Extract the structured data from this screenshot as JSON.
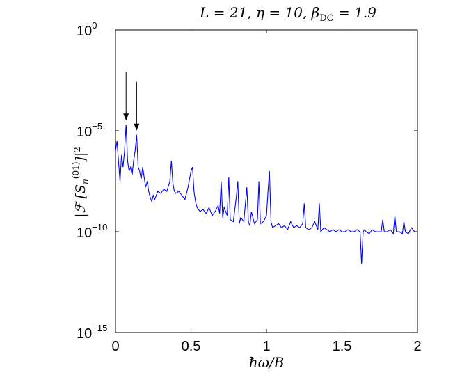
{
  "chart_data": {
    "type": "line",
    "title": "L = 21, η = 10, β_DC = 1.9",
    "xlabel": "ℏω/B",
    "ylabel": "|ℱ [S_π^(01)]|²",
    "xlim": [
      0,
      2
    ],
    "ylim_exponent": [
      -15,
      0
    ],
    "y_scale": "log",
    "x_ticks": [
      "0",
      "0.5",
      "1",
      "1.5",
      "2"
    ],
    "y_ticks": [
      {
        "base": "10",
        "exp": "0"
      },
      {
        "base": "10",
        "exp": "−5"
      },
      {
        "base": "10",
        "exp": "−10"
      },
      {
        "base": "10",
        "exp": "−15"
      }
    ],
    "series_color": "#0000ff",
    "annotations": [
      {
        "type": "arrow-down",
        "x": 0.07,
        "y_exponent": -4.7
      },
      {
        "type": "arrow-down",
        "x": 0.14,
        "y_exponent": -5.2
      }
    ],
    "series": [
      {
        "x": [
          0.0,
          0.01,
          0.02,
          0.03,
          0.04,
          0.05,
          0.06,
          0.07,
          0.08,
          0.09,
          0.1,
          0.11,
          0.12,
          0.13,
          0.14,
          0.15,
          0.16,
          0.17,
          0.18,
          0.19,
          0.2,
          0.21,
          0.22,
          0.23,
          0.24,
          0.25,
          0.26,
          0.28,
          0.3,
          0.32,
          0.34,
          0.36,
          0.37,
          0.38,
          0.39,
          0.4,
          0.42,
          0.44,
          0.46,
          0.48,
          0.5,
          0.51,
          0.52,
          0.53,
          0.54,
          0.56,
          0.58,
          0.6,
          0.62,
          0.64,
          0.66,
          0.68,
          0.69,
          0.7,
          0.71,
          0.72,
          0.73,
          0.74,
          0.75,
          0.76,
          0.78,
          0.8,
          0.81,
          0.82,
          0.83,
          0.85,
          0.87,
          0.88,
          0.89,
          0.9,
          0.92,
          0.94,
          0.95,
          0.96,
          0.98,
          1.0,
          1.01,
          1.02,
          1.03,
          1.04,
          1.06,
          1.08,
          1.1,
          1.12,
          1.14,
          1.16,
          1.18,
          1.2,
          1.22,
          1.24,
          1.25,
          1.26,
          1.28,
          1.3,
          1.32,
          1.34,
          1.35,
          1.36,
          1.38,
          1.4,
          1.42,
          1.44,
          1.46,
          1.48,
          1.5,
          1.52,
          1.54,
          1.56,
          1.58,
          1.6,
          1.62,
          1.63,
          1.64,
          1.65,
          1.66,
          1.68,
          1.7,
          1.72,
          1.74,
          1.76,
          1.77,
          1.78,
          1.8,
          1.82,
          1.84,
          1.85,
          1.86,
          1.88,
          1.9,
          1.91,
          1.92,
          1.94,
          1.96,
          1.98,
          2.0
        ],
        "y_exponent": [
          -6.0,
          -5.5,
          -6.5,
          -7.5,
          -6.2,
          -6.8,
          -6.0,
          -4.7,
          -6.5,
          -7.0,
          -6.8,
          -7.2,
          -6.5,
          -6.0,
          -5.2,
          -6.8,
          -7.0,
          -7.4,
          -6.8,
          -7.3,
          -7.8,
          -7.5,
          -8.0,
          -8.3,
          -8.5,
          -8.2,
          -8.4,
          -8.0,
          -8.1,
          -7.9,
          -8.0,
          -7.5,
          -6.5,
          -7.6,
          -8.0,
          -8.1,
          -8.0,
          -8.2,
          -8.4,
          -7.8,
          -7.0,
          -6.8,
          -8.0,
          -8.5,
          -8.8,
          -9.0,
          -8.9,
          -9.1,
          -8.8,
          -9.2,
          -9.0,
          -8.7,
          -9.1,
          -7.5,
          -9.3,
          -8.8,
          -9.0,
          -9.2,
          -7.3,
          -9.4,
          -9.5,
          -8.3,
          -7.5,
          -9.6,
          -9.3,
          -9.5,
          -7.8,
          -9.5,
          -9.7,
          -9.0,
          -9.6,
          -9.4,
          -7.5,
          -9.6,
          -9.5,
          -9.2,
          -8.0,
          -7.0,
          -9.5,
          -9.8,
          -9.7,
          -9.6,
          -9.8,
          -9.7,
          -9.9,
          -9.5,
          -9.8,
          -9.7,
          -9.8,
          -9.6,
          -8.6,
          -9.8,
          -9.9,
          -9.8,
          -9.5,
          -9.9,
          -8.6,
          -10.0,
          -9.8,
          -9.9,
          -10.0,
          -9.9,
          -10.0,
          -9.9,
          -10.0,
          -10.0,
          -9.9,
          -10.0,
          -10.0,
          -9.9,
          -10.0,
          -11.6,
          -10.0,
          -9.9,
          -10.0,
          -10.1,
          -9.9,
          -10.0,
          -10.0,
          -10.0,
          -9.4,
          -10.0,
          -10.0,
          -9.9,
          -10.1,
          -9.2,
          -10.0,
          -10.0,
          -10.1,
          -9.5,
          -10.0,
          -10.1,
          -9.8,
          -10.0,
          -10.0
        ]
      }
    ]
  }
}
